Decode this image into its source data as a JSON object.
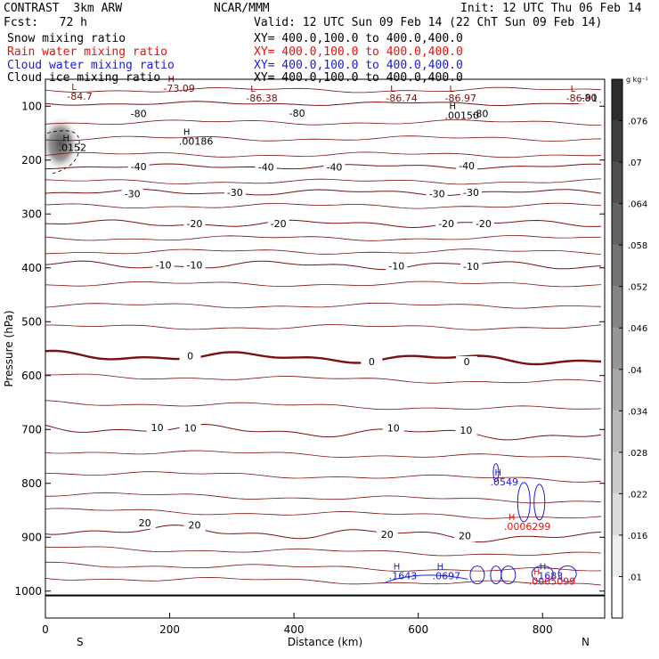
{
  "header": {
    "left1": "CONTRAST  3km ARW",
    "left2": "Fcst:   72 h",
    "center": "NCAR/MMM",
    "init": "Init: 12 UTC Thu 06 Feb 14",
    "valid": "Valid: 12 UTC Sun 09 Feb 14 (22 ChT Sun 09 Feb 14)",
    "fields": [
      {
        "name": "Snow mixing ratio",
        "xy": "XY= 400.0,100.0 to 400.0,400.0",
        "color": "#000000"
      },
      {
        "name": "Rain water mixing ratio",
        "xy": "XY= 400.0,100.0 to 400.0,400.0",
        "color": "#e8100c"
      },
      {
        "name": "Cloud water mixing ratio",
        "xy": "XY= 400.0,100.0 to 400.0,400.0",
        "color": "#1a1ae0"
      },
      {
        "name": "Cloud ice mixing ratio",
        "xy": "XY= 400.0,100.0 to 400.0,400.0",
        "color": "#000000"
      }
    ]
  },
  "chart_data": {
    "type": "contour_cross_section",
    "xlabel": "Distance (km)",
    "ylabel": "Pressure (hPa)",
    "xlim": [
      0,
      900
    ],
    "ylim": [
      1050,
      50
    ],
    "x_ticks": [
      0,
      200,
      400,
      600,
      800
    ],
    "y_ticks": [
      100,
      200,
      300,
      400,
      500,
      600,
      700,
      800,
      900,
      1000
    ],
    "left_end_label": "S",
    "right_end_label": "N",
    "colorbar": {
      "unit": "g kg⁻¹",
      "ticks": [
        ".076",
        ".07",
        ".064",
        ".058",
        ".052",
        ".046",
        ".04",
        ".034",
        ".028",
        ".022",
        ".016",
        ".01"
      ],
      "tick_values": [
        0.076,
        0.07,
        0.064,
        0.058,
        0.052,
        0.046,
        0.04,
        0.034,
        0.028,
        0.022,
        0.016,
        0.01
      ],
      "range": [
        0.004,
        0.082
      ]
    },
    "temperature_contours": [
      {
        "level": -80,
        "pressure": 95,
        "labels": [
          {
            "x": 150,
            "p": 114,
            "t": "-80"
          },
          {
            "x": 405,
            "p": 113,
            "t": "-80"
          },
          {
            "x": 700,
            "p": 114,
            "t": "-80"
          },
          {
            "x": 875,
            "p": 84,
            "t": "-80"
          }
        ]
      },
      {
        "level": -40,
        "pressure": 212,
        "labels": [
          {
            "x": 150,
            "p": 212,
            "t": "-40"
          },
          {
            "x": 355,
            "p": 213,
            "t": "-40"
          },
          {
            "x": 465,
            "p": 213,
            "t": "-40"
          },
          {
            "x": 678,
            "p": 210,
            "t": "-40"
          }
        ]
      },
      {
        "level": -30,
        "pressure": 260,
        "labels": [
          {
            "x": 140,
            "p": 262,
            "t": "-30"
          },
          {
            "x": 305,
            "p": 260,
            "t": "-30"
          },
          {
            "x": 630,
            "p": 262,
            "t": "-30"
          },
          {
            "x": 685,
            "p": 260,
            "t": "-30"
          }
        ]
      },
      {
        "level": -20,
        "pressure": 318,
        "labels": [
          {
            "x": 240,
            "p": 318,
            "t": "-20"
          },
          {
            "x": 375,
            "p": 318,
            "t": "-20"
          },
          {
            "x": 645,
            "p": 318,
            "t": "-20"
          },
          {
            "x": 705,
            "p": 318,
            "t": "-20"
          }
        ]
      },
      {
        "level": -10,
        "pressure": 395,
        "labels": [
          {
            "x": 190,
            "p": 395,
            "t": "-10"
          },
          {
            "x": 240,
            "p": 395,
            "t": "-10"
          },
          {
            "x": 565,
            "p": 396,
            "t": "-10"
          },
          {
            "x": 685,
            "p": 397,
            "t": "-10"
          }
        ]
      },
      {
        "level": 0,
        "pressure": 562,
        "labels": [
          {
            "x": 233,
            "p": 563,
            "t": "0"
          },
          {
            "x": 525,
            "p": 574,
            "t": "0"
          },
          {
            "x": 678,
            "p": 574,
            "t": "0"
          }
        ]
      },
      {
        "level": 10,
        "pressure": 696,
        "labels": [
          {
            "x": 180,
            "p": 696,
            "t": "10"
          },
          {
            "x": 233,
            "p": 697,
            "t": "10"
          },
          {
            "x": 560,
            "p": 697,
            "t": "10"
          },
          {
            "x": 677,
            "p": 701,
            "t": "10"
          }
        ]
      },
      {
        "level": 20,
        "pressure": 885,
        "labels": [
          {
            "x": 160,
            "p": 873,
            "t": "20"
          },
          {
            "x": 240,
            "p": 877,
            "t": "20"
          },
          {
            "x": 550,
            "p": 895,
            "t": "20"
          },
          {
            "x": 675,
            "p": 897,
            "t": "20"
          }
        ]
      }
    ],
    "min_max_markers": [
      {
        "mark": "L",
        "x": 42,
        "p": 85,
        "value": "-84.7",
        "color": "#7a1010"
      },
      {
        "mark": "H",
        "x": 197,
        "p": 70,
        "value": "-73.09",
        "color": "#7a1010"
      },
      {
        "mark": "L",
        "x": 330,
        "p": 88,
        "value": "-86.38",
        "color": "#7a1010"
      },
      {
        "mark": "L",
        "x": 555,
        "p": 88,
        "value": "-86.74",
        "color": "#7a1010"
      },
      {
        "mark": "L",
        "x": 650,
        "p": 88,
        "value": "-86.97",
        "color": "#7a1010"
      },
      {
        "mark": "L",
        "x": 845,
        "p": 88,
        "value": "-86.91",
        "color": "#7a1010"
      },
      {
        "mark": "H",
        "x": 28,
        "p": 180,
        "value": ".0152",
        "color": "#000000"
      },
      {
        "mark": "H",
        "x": 222,
        "p": 168,
        "value": ".00186",
        "color": "#000000"
      },
      {
        "mark": "H",
        "x": 650,
        "p": 120,
        "value": ".00150",
        "color": "#000000"
      },
      {
        "mark": "H",
        "x": 723,
        "p": 800,
        "value": ".0549",
        "color": "#1a1ae0"
      },
      {
        "mark": "H",
        "x": 745,
        "p": 883,
        "value": ".0006299",
        "color": "#e8100c"
      },
      {
        "mark": "H",
        "x": 560,
        "p": 975,
        "value": ".1643",
        "color": "#1a1ae0"
      },
      {
        "mark": "H",
        "x": 630,
        "p": 975,
        "value": ".0697",
        "color": "#1a1ae0"
      },
      {
        "mark": "H",
        "x": 795,
        "p": 975,
        "value": ".1683",
        "color": "#1a1ae0"
      },
      {
        "mark": "H",
        "x": 785,
        "p": 985,
        "value": ".0005099",
        "color": "#e8100c"
      }
    ],
    "surface_pressure": 1008
  }
}
